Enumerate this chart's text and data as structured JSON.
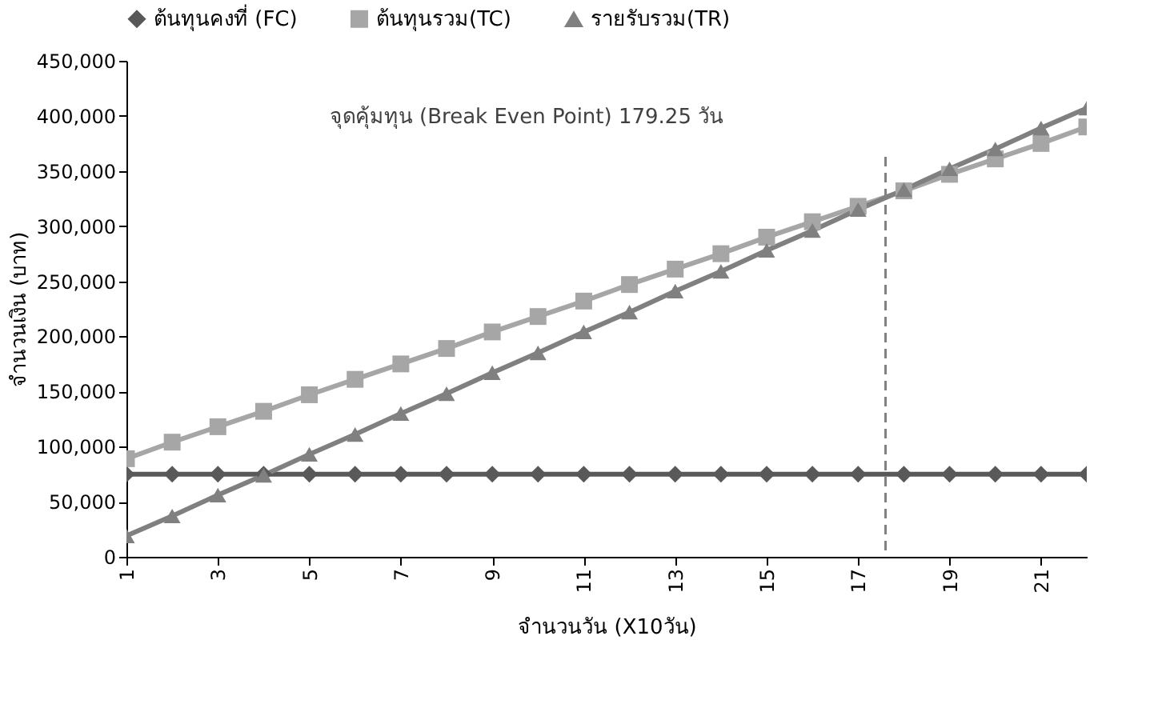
{
  "chart_data": {
    "type": "line",
    "xlabel": "จำนวนวัน (X10วัน)",
    "ylabel": "จำนวนเงิน (บาท)",
    "x": [
      1,
      2,
      3,
      4,
      5,
      6,
      7,
      8,
      9,
      10,
      11,
      12,
      13,
      14,
      15,
      16,
      17,
      18,
      19,
      20,
      21,
      22
    ],
    "series": [
      {
        "name": "ต้นทุนคงที่ (FC)",
        "color": "#595959",
        "marker": "diamond",
        "values": [
          75000,
          75000,
          75000,
          75000,
          75000,
          75000,
          75000,
          75000,
          75000,
          75000,
          75000,
          75000,
          75000,
          75000,
          75000,
          75000,
          75000,
          75000,
          75000,
          75000,
          75000,
          75000
        ]
      },
      {
        "name": "ต้นทุนรวม(TC)",
        "color": "#a6a6a6",
        "marker": "square",
        "values": [
          89000,
          104000,
          118000,
          132000,
          147000,
          161000,
          175000,
          189000,
          204000,
          218000,
          232000,
          247000,
          261000,
          275000,
          290000,
          304000,
          318000,
          332000,
          347000,
          361000,
          375000,
          390000
        ]
      },
      {
        "name": "รายรับรวม(TR)",
        "color": "#808080",
        "marker": "triangle",
        "values": [
          19000,
          37000,
          56000,
          74000,
          93000,
          111000,
          130000,
          148000,
          167000,
          185000,
          204000,
          222000,
          241000,
          259000,
          278000,
          296000,
          315000,
          333000,
          352000,
          370000,
          389000,
          407000
        ]
      }
    ],
    "xlim": [
      1,
      22
    ],
    "xticks": [
      1,
      3,
      5,
      7,
      9,
      11,
      13,
      15,
      17,
      19,
      21
    ],
    "ylim": [
      0,
      450000
    ],
    "yticks": [
      0,
      {
        "value": 50000,
        "label": "50,000"
      },
      {
        "value": 100000,
        "label": "100,000"
      },
      {
        "value": 150000,
        "label": "150,000"
      },
      {
        "value": 200000,
        "label": "200,000"
      },
      {
        "value": 250000,
        "label": "250,000"
      },
      {
        "value": 300000,
        "label": "300,000"
      },
      {
        "value": 350000,
        "label": "350,000"
      },
      {
        "value": 400000,
        "label": "400,000"
      },
      {
        "value": 450000,
        "label": "450,000"
      }
    ],
    "ref_lines": [
      {
        "axis": "x",
        "value": 17.6,
        "color": "#808080",
        "line_style": "dashed"
      }
    ],
    "annotations": [
      "จุดคุ้มทุน (Break Even Point) 179.25 วัน"
    ],
    "grid": false,
    "legend": "top",
    "line_style": "solid"
  }
}
